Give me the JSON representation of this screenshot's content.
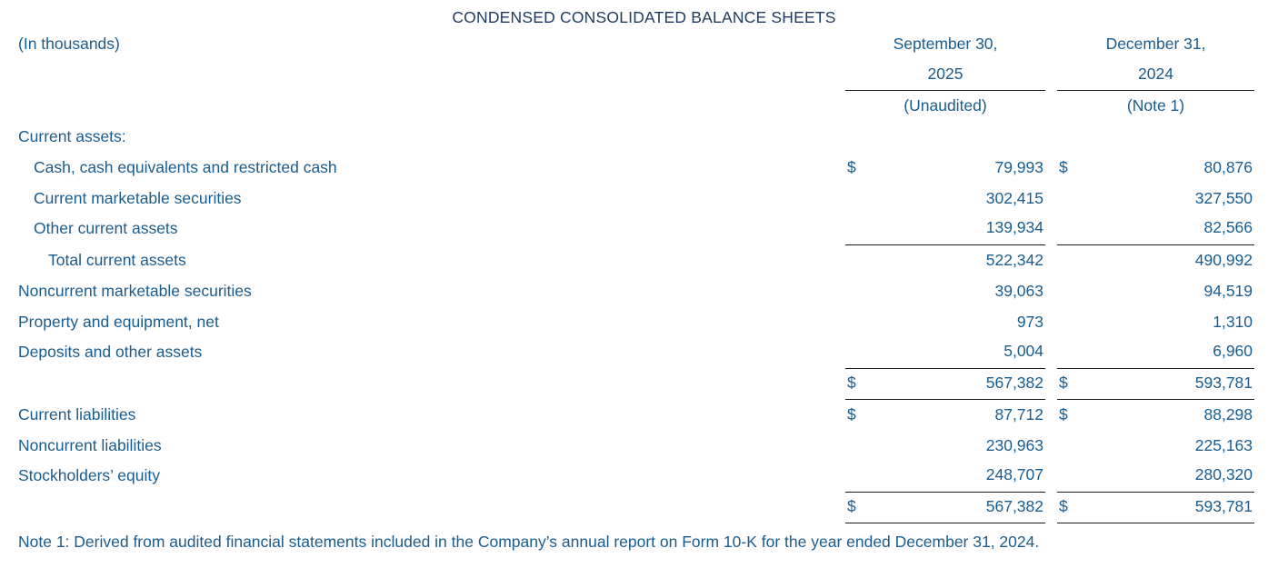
{
  "title": "CONDENSED CONSOLIDATED BALANCE SHEETS",
  "units_label": "(In thousands)",
  "currency_symbol": "$",
  "columns": [
    {
      "date_line1": "September 30,",
      "date_line2": "2025",
      "subtitle": "(Unaudited)"
    },
    {
      "date_line1": "December 31,",
      "date_line2": "2024",
      "subtitle": "(Note 1)"
    }
  ],
  "rows": [
    {
      "label": "Current assets:",
      "indent": 0
    },
    {
      "label": "Cash, cash equivalents and restricted cash",
      "indent": 1,
      "dollar": true,
      "values": [
        "79,993",
        "80,876"
      ]
    },
    {
      "label": "Current marketable securities",
      "indent": 1,
      "values": [
        "302,415",
        "327,550"
      ]
    },
    {
      "label": "Other current assets",
      "indent": 1,
      "values": [
        "139,934",
        "82,566"
      ],
      "rule_below": true
    },
    {
      "label": "Total current assets",
      "indent": 2,
      "values": [
        "522,342",
        "490,992"
      ]
    },
    {
      "label": "Noncurrent marketable securities",
      "indent": 0,
      "values": [
        "39,063",
        "94,519"
      ]
    },
    {
      "label": "Property and equipment, net",
      "indent": 0,
      "values": [
        "973",
        "1,310"
      ]
    },
    {
      "label": "Deposits and other assets",
      "indent": 0,
      "values": [
        "5,004",
        "6,960"
      ],
      "rule_below": true
    },
    {
      "label": "",
      "indent": 0,
      "dollar": true,
      "values": [
        "567,382",
        "593,781"
      ],
      "rule_below": true
    },
    {
      "label": "Current liabilities",
      "indent": 0,
      "dollar": true,
      "values": [
        "87,712",
        "88,298"
      ]
    },
    {
      "label": "Noncurrent liabilities",
      "indent": 0,
      "values": [
        "230,963",
        "225,163"
      ]
    },
    {
      "label": "Stockholders’ equity",
      "indent": 0,
      "values": [
        "248,707",
        "280,320"
      ],
      "rule_below": true
    },
    {
      "label": "",
      "indent": 0,
      "dollar": true,
      "values": [
        "567,382",
        "593,781"
      ],
      "rule_below": true
    }
  ],
  "note": "Note 1: Derived from audited financial statements included in the Company’s annual report on Form 10-K for the year ended December 31, 2024.",
  "colors": {
    "title": "#1e3a5f",
    "body": "#1b5c8c",
    "rule": "#1c1c1c",
    "background": "#ffffff"
  }
}
